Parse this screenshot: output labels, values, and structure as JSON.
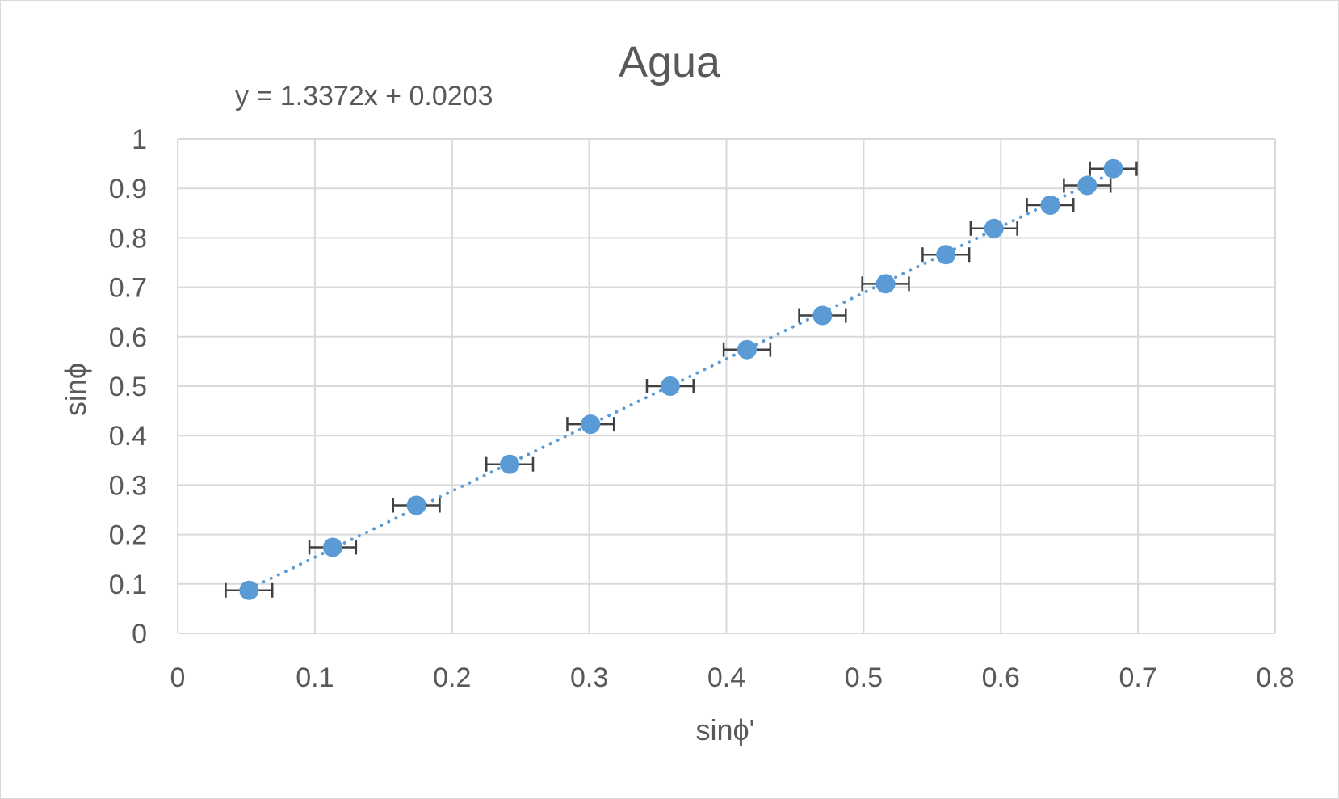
{
  "chart_data": {
    "type": "scatter",
    "title": "Agua",
    "xlabel": "sinϕ'",
    "ylabel": "sinϕ",
    "xlim": [
      0,
      0.8
    ],
    "ylim": [
      0,
      1
    ],
    "x_ticks": [
      "0",
      "0.1",
      "0.2",
      "0.3",
      "0.4",
      "0.5",
      "0.6",
      "0.7",
      "0.8"
    ],
    "y_ticks": [
      "0",
      "0.1",
      "0.2",
      "0.3",
      "0.4",
      "0.5",
      "0.6",
      "0.7",
      "0.8",
      "0.9",
      "1"
    ],
    "grid": true,
    "legend": "none",
    "trendline": {
      "type": "linear",
      "slope": 1.3372,
      "intercept": 0.0203,
      "equation": "y = 1.3372x + 0.0203",
      "style": "dotted"
    },
    "series": [
      {
        "x": [
          0.052,
          0.113,
          0.174,
          0.242,
          0.301,
          0.359,
          0.415,
          0.47,
          0.516,
          0.56,
          0.595,
          0.636,
          0.663,
          0.682
        ],
        "y": [
          0.087,
          0.174,
          0.259,
          0.342,
          0.423,
          0.5,
          0.574,
          0.643,
          0.707,
          0.766,
          0.819,
          0.866,
          0.906,
          0.94
        ],
        "x_error": 0.017,
        "color": "#5b9bd5"
      }
    ],
    "colors": {
      "marker": "#5b9bd5",
      "trendline": "#5b9bd5",
      "error_bar": "#404040",
      "grid": "#d9d9d9",
      "text": "#595959"
    }
  }
}
